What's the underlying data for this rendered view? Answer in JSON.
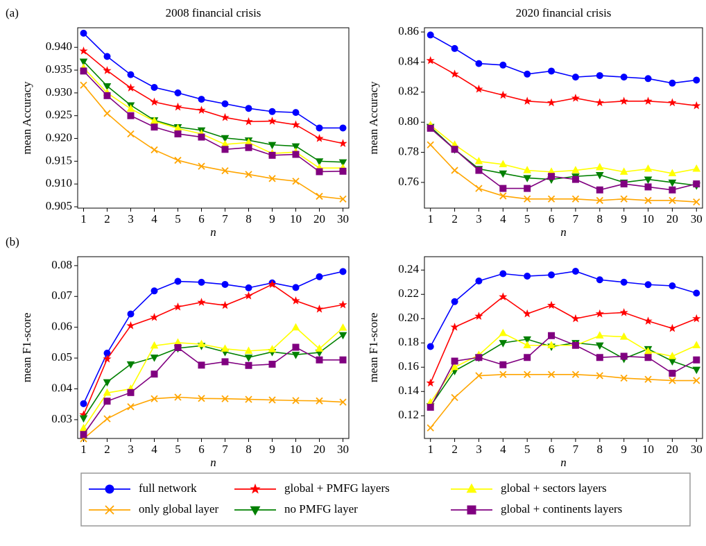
{
  "chart_data": [
    {
      "type": "line",
      "panel_label": "(a)",
      "title": "2008 financial crisis",
      "ylabel": "mean Accuracy",
      "xlabel": "n",
      "categories": [
        "1",
        "2",
        "3",
        "4",
        "5",
        "6",
        "7",
        "8",
        "9",
        "10",
        "20",
        "30"
      ],
      "ylim": [
        0.9047,
        0.9443
      ],
      "yticks": [
        0.905,
        {
          "value": 0.91,
          "label": "0.910"
        },
        0.915,
        {
          "value": 0.92,
          "label": "0.920"
        },
        0.925,
        {
          "value": 0.93,
          "label": "0.930"
        },
        0.935,
        {
          "value": 0.94,
          "label": "0.940"
        }
      ],
      "series": [
        {
          "name": "full network",
          "color": "#0000ff",
          "marker": "circle",
          "values": [
            0.9431,
            0.938,
            0.934,
            0.9312,
            0.93,
            0.9286,
            0.9276,
            0.9266,
            0.9259,
            0.9257,
            0.9223,
            0.9223
          ]
        },
        {
          "name": "only global layer",
          "color": "#ffa500",
          "marker": "x",
          "values": [
            0.9317,
            0.9255,
            0.921,
            0.9175,
            0.9152,
            0.9139,
            0.9129,
            0.9121,
            0.9112,
            0.9106,
            0.9073,
            0.9067
          ]
        },
        {
          "name": "global + PMFG layers",
          "color": "#ff0000",
          "marker": "star",
          "values": [
            0.9392,
            0.9349,
            0.9311,
            0.928,
            0.9269,
            0.9262,
            0.9246,
            0.9237,
            0.9238,
            0.923,
            0.92,
            0.9189
          ]
        },
        {
          "name": "no PMFG layer",
          "color": "#008000",
          "marker": "tri-down",
          "values": [
            0.9369,
            0.9315,
            0.9273,
            0.924,
            0.9225,
            0.9218,
            0.9201,
            0.9196,
            0.9186,
            0.9183,
            0.915,
            0.9148
          ]
        },
        {
          "name": "global + sectors layers",
          "color": "#ffff00",
          "marker": "tri-up",
          "values": [
            0.9355,
            0.93,
            0.9265,
            0.9238,
            0.9222,
            0.921,
            0.9187,
            0.9191,
            0.9167,
            0.917,
            0.9135,
            0.9135
          ]
        },
        {
          "name": "global + continents layers",
          "color": "#800080",
          "marker": "square",
          "values": [
            0.9348,
            0.9294,
            0.925,
            0.9225,
            0.921,
            0.9203,
            0.9176,
            0.918,
            0.9163,
            0.9165,
            0.9127,
            0.9128
          ]
        }
      ]
    },
    {
      "type": "line",
      "title": "2020 financial crisis",
      "ylabel": "mean Accuracy",
      "xlabel": "n",
      "categories": [
        "1",
        "2",
        "3",
        "4",
        "5",
        "6",
        "7",
        "8",
        "9",
        "10",
        "20",
        "30"
      ],
      "ylim": [
        0.7429,
        0.8628
      ],
      "yticks": [
        0.76,
        0.78,
        {
          "value": 0.8,
          "label": "0.80"
        },
        0.82,
        0.84,
        0.86
      ],
      "series": [
        {
          "color": "#0000ff",
          "marker": "circle",
          "values": [
            0.858,
            0.849,
            0.839,
            0.838,
            0.832,
            0.834,
            0.83,
            0.831,
            0.83,
            0.829,
            0.826,
            0.828
          ]
        },
        {
          "color": "#ffa500",
          "marker": "x",
          "values": [
            0.785,
            0.768,
            0.756,
            0.751,
            0.749,
            0.749,
            0.749,
            0.748,
            0.749,
            0.748,
            0.748,
            0.747
          ]
        },
        {
          "color": "#ff0000",
          "marker": "star",
          "values": [
            0.841,
            0.832,
            0.822,
            0.818,
            0.814,
            0.813,
            0.816,
            0.813,
            0.814,
            0.814,
            0.813,
            0.811
          ]
        },
        {
          "color": "#008000",
          "marker": "tri-down",
          "values": [
            0.797,
            0.782,
            0.769,
            0.766,
            0.763,
            0.762,
            0.764,
            0.765,
            0.76,
            0.762,
            0.76,
            0.758
          ]
        },
        {
          "color": "#ffff00",
          "marker": "tri-up",
          "values": [
            0.798,
            0.785,
            0.774,
            0.772,
            0.768,
            0.767,
            0.768,
            0.77,
            0.767,
            0.769,
            0.766,
            0.769
          ]
        },
        {
          "color": "#800080",
          "marker": "square",
          "values": [
            0.796,
            0.782,
            0.768,
            0.756,
            0.756,
            0.764,
            0.762,
            0.755,
            0.759,
            0.757,
            0.755,
            0.759
          ]
        }
      ]
    },
    {
      "type": "line",
      "panel_label": "(b)",
      "ylabel": "mean F1-score",
      "xlabel": "n",
      "categories": [
        "1",
        "2",
        "3",
        "4",
        "5",
        "6",
        "7",
        "8",
        "9",
        "10",
        "20",
        "30"
      ],
      "ylim": [
        0.0239,
        0.0829
      ],
      "yticks": [
        0.03,
        0.04,
        0.05,
        0.06,
        0.07,
        0.08
      ],
      "series": [
        {
          "color": "#0000ff",
          "marker": "circle",
          "values": [
            0.0352,
            0.0516,
            0.0643,
            0.0718,
            0.0749,
            0.0746,
            0.0739,
            0.0728,
            0.0744,
            0.0729,
            0.0764,
            0.0781
          ]
        },
        {
          "color": "#ffa500",
          "marker": "x",
          "values": [
            0.0238,
            0.0303,
            0.0342,
            0.0368,
            0.0373,
            0.0369,
            0.0368,
            0.0366,
            0.0364,
            0.0362,
            0.0361,
            0.0357
          ]
        },
        {
          "color": "#ff0000",
          "marker": "star",
          "values": [
            0.0316,
            0.0497,
            0.0605,
            0.0632,
            0.0666,
            0.0681,
            0.0671,
            0.0702,
            0.0739,
            0.0686,
            0.0659,
            0.0673
          ]
        },
        {
          "color": "#008000",
          "marker": "tri-down",
          "values": [
            0.0305,
            0.0422,
            0.048,
            0.0502,
            0.0532,
            0.054,
            0.052,
            0.0502,
            0.052,
            0.0511,
            0.0518,
            0.0575
          ]
        },
        {
          "color": "#ffff00",
          "marker": "tri-up",
          "values": [
            0.0272,
            0.0387,
            0.04,
            0.054,
            0.055,
            0.0545,
            0.053,
            0.0523,
            0.0528,
            0.0599,
            0.053,
            0.0598
          ]
        },
        {
          "color": "#800080",
          "marker": "square",
          "values": [
            0.0252,
            0.036,
            0.0388,
            0.0448,
            0.0534,
            0.0477,
            0.0488,
            0.0476,
            0.048,
            0.0535,
            0.0494,
            0.0494
          ]
        }
      ]
    },
    {
      "type": "line",
      "ylabel": "mean F1-score",
      "xlabel": "n",
      "categories": [
        "1",
        "2",
        "3",
        "4",
        "5",
        "6",
        "7",
        "8",
        "9",
        "10",
        "20",
        "30"
      ],
      "ylim": [
        0.1013,
        0.251
      ],
      "yticks": [
        0.12,
        0.14,
        0.16,
        0.18,
        {
          "value": 0.2,
          "label": "0.20"
        },
        0.22,
        0.24
      ],
      "series": [
        {
          "color": "#0000ff",
          "marker": "circle",
          "values": [
            0.177,
            0.214,
            0.231,
            0.237,
            0.235,
            0.236,
            0.239,
            0.232,
            0.23,
            0.228,
            0.227,
            0.221
          ]
        },
        {
          "color": "#ffa500",
          "marker": "x",
          "values": [
            0.11,
            0.135,
            0.153,
            0.154,
            0.154,
            0.154,
            0.154,
            0.153,
            0.151,
            0.15,
            0.149,
            0.149
          ]
        },
        {
          "color": "#ff0000",
          "marker": "star",
          "values": [
            0.147,
            0.193,
            0.202,
            0.218,
            0.204,
            0.211,
            0.2,
            0.204,
            0.205,
            0.198,
            0.192,
            0.2
          ]
        },
        {
          "color": "#008000",
          "marker": "tri-down",
          "values": [
            0.128,
            0.157,
            0.168,
            0.18,
            0.183,
            0.177,
            0.18,
            0.178,
            0.167,
            0.175,
            0.165,
            0.158
          ]
        },
        {
          "color": "#ffff00",
          "marker": "tri-up",
          "values": [
            0.131,
            0.16,
            0.17,
            0.188,
            0.178,
            0.178,
            0.178,
            0.186,
            0.185,
            0.173,
            0.169,
            0.178
          ]
        },
        {
          "color": "#800080",
          "marker": "square",
          "values": [
            0.127,
            0.165,
            0.168,
            0.162,
            0.168,
            0.186,
            0.178,
            0.168,
            0.169,
            0.168,
            0.155,
            0.166
          ]
        }
      ]
    }
  ]
}
